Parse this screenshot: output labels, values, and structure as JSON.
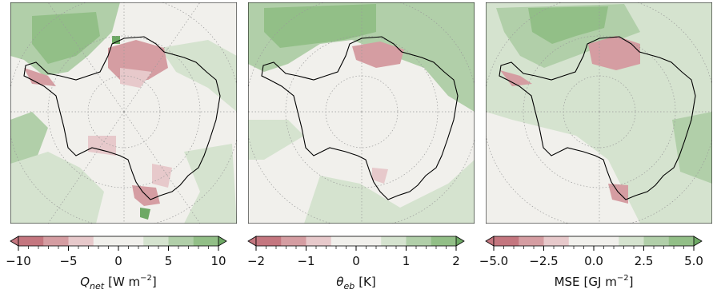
{
  "colors": {
    "negative_strong": "#c4767f",
    "negative_mid": "#d59da2",
    "negative_weak": "#e7c9cb",
    "neutral": "#f1f0ec",
    "positive_weak": "#d5e3cf",
    "positive_mid": "#b1cfa9",
    "positive_strong": "#92bf87",
    "positive_max": "#6ea965",
    "coast": "#000000",
    "grid": "#9a9a9a"
  },
  "panels": [
    {
      "id": "qnet",
      "label_symbol": "Q",
      "label_sub": "net",
      "label_unit": "[W m",
      "label_exp": "−2",
      "label_close": "]",
      "ticks": [
        "−10",
        "−5",
        "0",
        "5",
        "10"
      ]
    },
    {
      "id": "theta",
      "label_symbol": "θ",
      "label_sub": "eb",
      "label_unit": "[K]",
      "label_exp": "",
      "label_close": "",
      "ticks": [
        "−2",
        "−1",
        "0",
        "1",
        "2"
      ]
    },
    {
      "id": "mse",
      "label_symbol": "MSE",
      "label_sub": "",
      "label_unit": "[GJ m",
      "label_exp": "−2",
      "label_close": "]",
      "ticks": [
        "−5.0",
        "−2.5",
        "0.0",
        "2.5",
        "5.0"
      ]
    }
  ]
}
